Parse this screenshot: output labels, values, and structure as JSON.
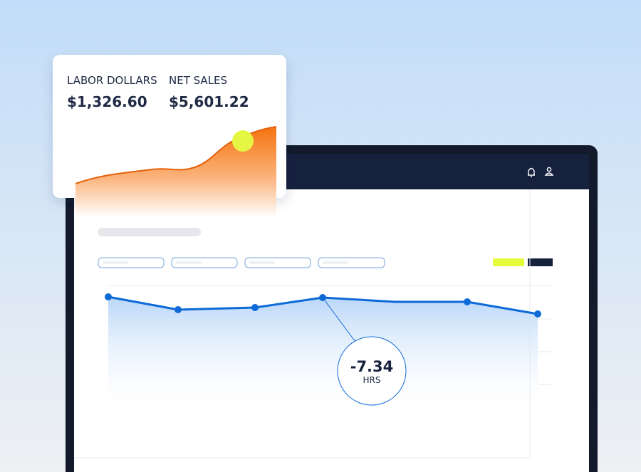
{
  "card": {
    "metrics": [
      {
        "label": "LABOR DOLLARS",
        "value": "$1,326.60"
      },
      {
        "label": "NET SALES",
        "value": "$5,601.22"
      }
    ]
  },
  "callout": {
    "value": "-7.34",
    "unit": "HRS"
  }
}
